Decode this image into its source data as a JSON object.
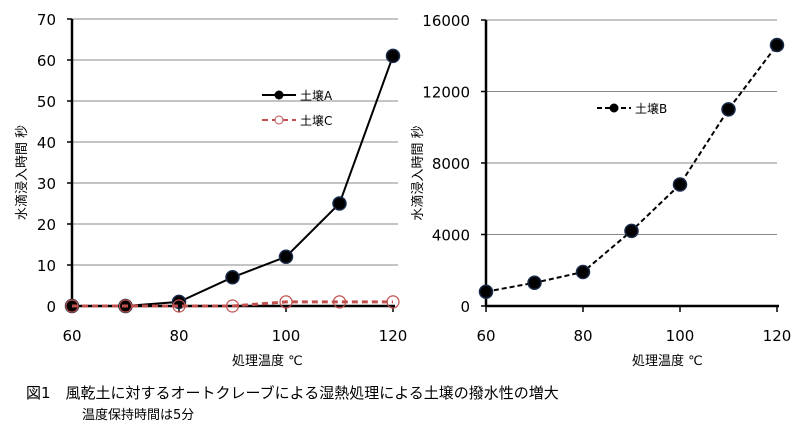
{
  "chart_data": [
    {
      "type": "line",
      "x": [
        60,
        70,
        80,
        90,
        100,
        110,
        120
      ],
      "xticks": [
        "60",
        "80",
        "100",
        "120"
      ],
      "yticks": [
        "0",
        "10",
        "20",
        "30",
        "40",
        "50",
        "60",
        "70"
      ],
      "xlim": [
        60,
        120
      ],
      "ylim": [
        0,
        70
      ],
      "xlabel": "処理温度 ℃",
      "ylabel": "水滴浸入時間 秒",
      "grid": true,
      "legend_position": "upper-right",
      "series": [
        {
          "name": "土壌A",
          "values": [
            0,
            0,
            1,
            7,
            12,
            25,
            61
          ],
          "color": "#000000",
          "style": "solid",
          "marker": "filled-circle"
        },
        {
          "name": "土壌C",
          "values": [
            0,
            0,
            0,
            0,
            1,
            1,
            1
          ],
          "color": "#c0504d",
          "style": "dashed",
          "marker": "open-circle"
        }
      ]
    },
    {
      "type": "line",
      "x": [
        60,
        70,
        80,
        90,
        100,
        110,
        120
      ],
      "xticks": [
        "60",
        "80",
        "100",
        "120"
      ],
      "yticks": [
        "0",
        "4000",
        "8000",
        "12000",
        "16000"
      ],
      "xlim": [
        60,
        120
      ],
      "ylim": [
        0,
        16000
      ],
      "xlabel": "処理温度 ℃",
      "ylabel": "水滴浸入時間 秒",
      "grid": true,
      "legend_position": "upper-center",
      "series": [
        {
          "name": "土壌B",
          "values": [
            800,
            1300,
            1900,
            4200,
            6800,
            11000,
            14600
          ],
          "color": "#000000",
          "style": "dashed",
          "marker": "filled-circle"
        }
      ]
    }
  ],
  "caption": {
    "title": "図1　風乾土に対するオートクレーブによる湿熱処理による土壌の撥水性の増大",
    "note": "温度保持時間は5分"
  }
}
